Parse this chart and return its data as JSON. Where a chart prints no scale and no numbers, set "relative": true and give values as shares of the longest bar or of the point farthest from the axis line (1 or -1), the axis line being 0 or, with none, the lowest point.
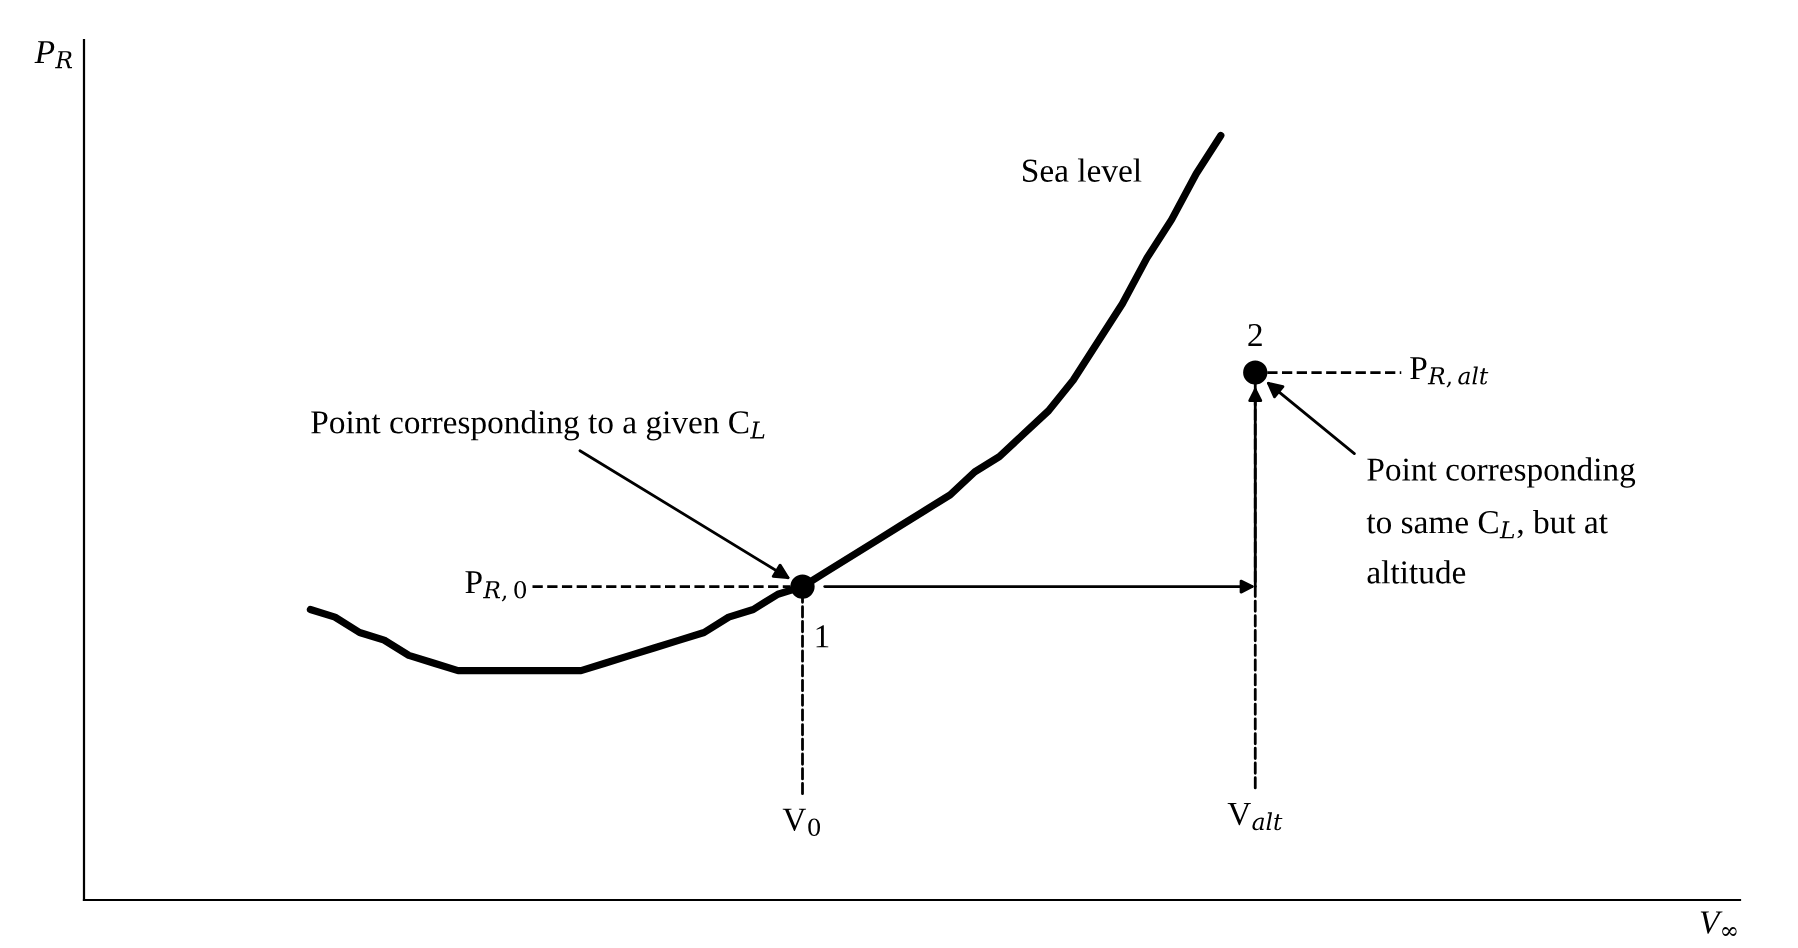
{
  "chart_data": {
    "type": "line",
    "relative": true,
    "categories": [
      null,
      null,
      null,
      null,
      null,
      null,
      null,
      null,
      null,
      null,
      null,
      null,
      null,
      null,
      null,
      null,
      null,
      null,
      null,
      null,
      null,
      null,
      null,
      null,
      null,
      null,
      null,
      null,
      null,
      null,
      null,
      null,
      null,
      null,
      null,
      null,
      null,
      null
    ],
    "series": [
      {
        "color": "#000000",
        "values": [
          0.38,
          0.37,
          0.35,
          0.34,
          0.32,
          0.31,
          0.3,
          0.3,
          0.3,
          0.3,
          0.3,
          0.3,
          0.31,
          0.32,
          0.33,
          0.34,
          0.35,
          0.37,
          0.38,
          0.4,
          0.41,
          0.43,
          0.45,
          0.47,
          0.49,
          0.51,
          0.53,
          0.56,
          0.58,
          0.61,
          0.64,
          0.68,
          0.73,
          0.78,
          0.84,
          0.89,
          0.95,
          1.0
        ]
      }
    ],
    "ref_lines": [
      {
        "axis": "y",
        "value": 0.41,
        "label": "P$_{R,0}$",
        "line_style": "dashed"
      },
      {
        "axis": "y",
        "value": 0.69,
        "label": "P$_{R,alt}$",
        "line_style": "dashed"
      }
    ],
    "annotations": [
      "Sea level",
      "Point corresponding to a given C$_{L}$",
      {
        "text": "1",
        "y": 0.41
      },
      {
        "text": "V$_{0}$",
        "y": 0.41
      },
      "2",
      "Point corresponding",
      "to same C$_{L}$, but at",
      "altitude",
      "V$_{alt}$",
      "P$_{R}$",
      "V$_{∞}$"
    ]
  }
}
